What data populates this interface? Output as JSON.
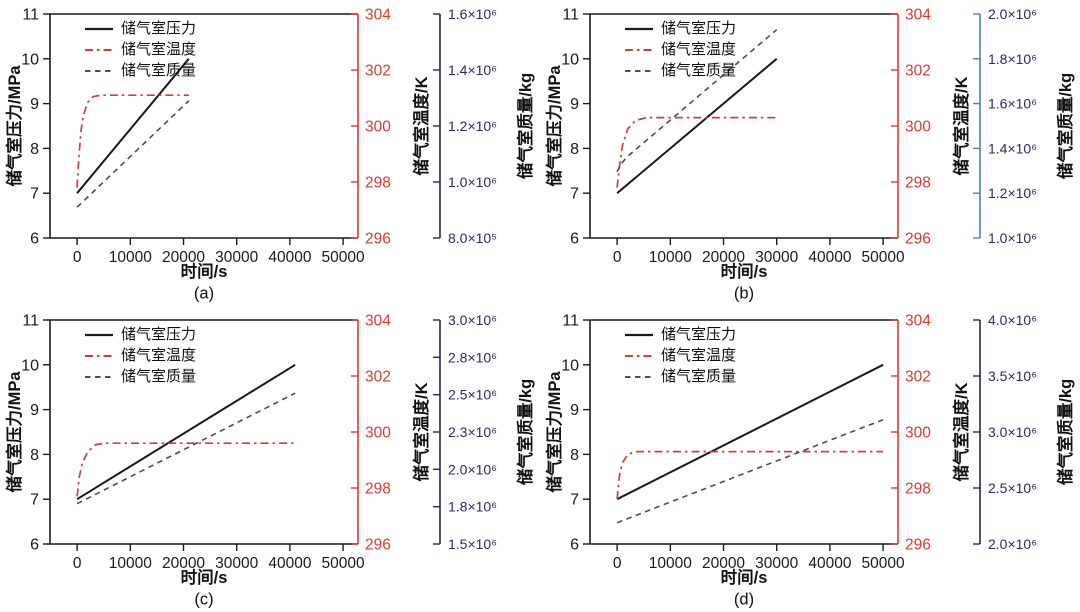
{
  "figure": {
    "background": "#ffffff"
  },
  "colors": {
    "pressure_line": "#1a1a1a",
    "temperature_line": "#c9413a",
    "temperature_axis": "#d93a30",
    "mass_line": "#4a4a62",
    "mass_label": "#2c2c5e",
    "axis_black": "#1a1a1a"
  },
  "chart_data": [
    {
      "type": "line",
      "caption": "(a)",
      "xlabel": "时间/s",
      "ylabel_left": "储气室压力/MPa",
      "ylabel_temp": "储气室温度/K",
      "ylabel_mass": "储气室质量/kg",
      "grid": false,
      "legend_position": "top-left",
      "xlim": [
        -5100,
        52800
      ],
      "x_ticks": [
        0,
        10000,
        20000,
        30000,
        40000,
        50000
      ],
      "pressure": {
        "name": "储气室压力",
        "unit": "MPa",
        "ylim": [
          6,
          11
        ],
        "ticks": [
          6,
          7,
          8,
          9,
          10,
          11
        ],
        "points": [
          [
            0,
            7.0
          ],
          [
            21000,
            10.0
          ]
        ]
      },
      "temperature": {
        "name": "储气室温度",
        "unit": "K",
        "ylim": [
          296,
          304
        ],
        "ticks": [
          296,
          298,
          300,
          302,
          304
        ],
        "points": [
          [
            0,
            297.8
          ],
          [
            300,
            298.8
          ],
          [
            700,
            299.8
          ],
          [
            1200,
            300.4
          ],
          [
            2000,
            300.85
          ],
          [
            3000,
            301.05
          ],
          [
            4500,
            301.1
          ],
          [
            21000,
            301.1
          ]
        ]
      },
      "mass": {
        "name": "储气室质量",
        "unit": "kg",
        "ylim": [
          800000,
          1600000
        ],
        "axis_color": "#26264f",
        "ticks": [
          {
            "v": 800000,
            "label": "8.0×10⁵"
          },
          {
            "v": 1000000,
            "label": "1.0×10⁶"
          },
          {
            "v": 1200000,
            "label": "1.2×10⁶"
          },
          {
            "v": 1400000,
            "label": "1.4×10⁶"
          },
          {
            "v": 1600000,
            "label": "1.6×10⁶"
          }
        ],
        "points": [
          [
            0,
            910000
          ],
          [
            21000,
            1290000
          ]
        ]
      }
    },
    {
      "type": "line",
      "caption": "(b)",
      "xlabel": "时间/s",
      "ylabel_left": "储气室压力/MPa",
      "ylabel_temp": "储气室温度/K",
      "ylabel_mass": "储气室质量/kg",
      "grid": false,
      "legend_position": "top-left",
      "xlim": [
        -5100,
        52800
      ],
      "x_ticks": [
        0,
        10000,
        20000,
        30000,
        40000,
        50000
      ],
      "pressure": {
        "name": "储气室压力",
        "unit": "MPa",
        "ylim": [
          6,
          11
        ],
        "ticks": [
          6,
          7,
          8,
          9,
          10,
          11
        ],
        "points": [
          [
            0,
            7.0
          ],
          [
            30000,
            10.0
          ]
        ]
      },
      "temperature": {
        "name": "储气室温度",
        "unit": "K",
        "ylim": [
          296,
          304
        ],
        "ticks": [
          296,
          298,
          300,
          302,
          304
        ],
        "points": [
          [
            0,
            297.8
          ],
          [
            400,
            298.5
          ],
          [
            1000,
            299.3
          ],
          [
            2000,
            299.9
          ],
          [
            3500,
            300.2
          ],
          [
            5500,
            300.3
          ],
          [
            30000,
            300.3
          ]
        ]
      },
      "mass": {
        "name": "储气室质量",
        "unit": "kg",
        "ylim": [
          1000000,
          2000000
        ],
        "axis_color": "#53809f",
        "ticks": [
          {
            "v": 1000000,
            "label": "1.0×10⁶"
          },
          {
            "v": 1200000,
            "label": "1.2×10⁶"
          },
          {
            "v": 1400000,
            "label": "1.4×10⁶"
          },
          {
            "v": 1600000,
            "label": "1.6×10⁶"
          },
          {
            "v": 1800000,
            "label": "1.8×10⁶"
          },
          {
            "v": 2000000,
            "label": "2.0×10⁶"
          }
        ],
        "points": [
          [
            0,
            1295000
          ],
          [
            700,
            1330000
          ],
          [
            2000,
            1365000
          ],
          [
            30000,
            1930000
          ]
        ]
      }
    },
    {
      "type": "line",
      "caption": "(c)",
      "xlabel": "时间/s",
      "ylabel_left": "储气室压力/MPa",
      "ylabel_temp": "储气室温度/K",
      "ylabel_mass": "储气室质量/kg",
      "grid": false,
      "legend_position": "top-left",
      "xlim": [
        -5100,
        52800
      ],
      "x_ticks": [
        0,
        10000,
        20000,
        30000,
        40000,
        50000
      ],
      "pressure": {
        "name": "储气室压力",
        "unit": "MPa",
        "ylim": [
          6,
          11
        ],
        "ticks": [
          6,
          7,
          8,
          9,
          10,
          11
        ],
        "points": [
          [
            0,
            7.0
          ],
          [
            41000,
            10.0
          ]
        ]
      },
      "temperature": {
        "name": "储气室温度",
        "unit": "K",
        "ylim": [
          296,
          304
        ],
        "ticks": [
          296,
          298,
          300,
          302,
          304
        ],
        "points": [
          [
            0,
            297.7
          ],
          [
            400,
            298.4
          ],
          [
            1000,
            298.9
          ],
          [
            2000,
            299.3
          ],
          [
            3500,
            299.55
          ],
          [
            5500,
            299.6
          ],
          [
            41000,
            299.6
          ]
        ]
      },
      "mass": {
        "name": "储气室质量",
        "unit": "kg",
        "ylim": [
          1500000,
          3000000
        ],
        "axis_color": "#26264f",
        "ticks": [
          {
            "v": 1500000,
            "label": "1.5×10⁶"
          },
          {
            "v": 1750000,
            "label": "1.8×10⁶"
          },
          {
            "v": 2000000,
            "label": "2.0×10⁶"
          },
          {
            "v": 2250000,
            "label": "2.3×10⁶"
          },
          {
            "v": 2500000,
            "label": "2.5×10⁶"
          },
          {
            "v": 2750000,
            "label": "2.8×10⁶"
          },
          {
            "v": 3000000,
            "label": "3.0×10⁶"
          }
        ],
        "points": [
          [
            0,
            1770000
          ],
          [
            41000,
            2510000
          ]
        ]
      }
    },
    {
      "type": "line",
      "caption": "(d)",
      "xlabel": "时间/s",
      "ylabel_left": "储气室压力/MPa",
      "ylabel_temp": "储气室温度/K",
      "ylabel_mass": "储气室质量/kg",
      "grid": false,
      "legend_position": "top-left",
      "xlim": [
        -5100,
        52800
      ],
      "x_ticks": [
        0,
        10000,
        20000,
        30000,
        40000,
        50000
      ],
      "pressure": {
        "name": "储气室压力",
        "unit": "MPa",
        "ylim": [
          6,
          11
        ],
        "ticks": [
          6,
          7,
          8,
          9,
          10,
          11
        ],
        "points": [
          [
            0,
            7.0
          ],
          [
            50000,
            10.0
          ]
        ]
      },
      "temperature": {
        "name": "储气室温度",
        "unit": "K",
        "ylim": [
          296,
          304
        ],
        "ticks": [
          296,
          298,
          300,
          302,
          304
        ],
        "points": [
          [
            0,
            297.6
          ],
          [
            400,
            298.4
          ],
          [
            1000,
            298.9
          ],
          [
            2000,
            299.2
          ],
          [
            3500,
            299.3
          ],
          [
            50000,
            299.3
          ]
        ]
      },
      "mass": {
        "name": "储气室质量",
        "unit": "kg",
        "ylim": [
          2000000,
          4000000
        ],
        "axis_color": "#26264f",
        "ticks": [
          {
            "v": 2000000,
            "label": "2.0×10⁶"
          },
          {
            "v": 2500000,
            "label": "2.5×10⁶"
          },
          {
            "v": 3000000,
            "label": "3.0×10⁶"
          },
          {
            "v": 3500000,
            "label": "3.5×10⁶"
          },
          {
            "v": 4000000,
            "label": "4.0×10⁶"
          }
        ],
        "points": [
          [
            0,
            2190000
          ],
          [
            50000,
            3110000
          ]
        ]
      }
    }
  ]
}
